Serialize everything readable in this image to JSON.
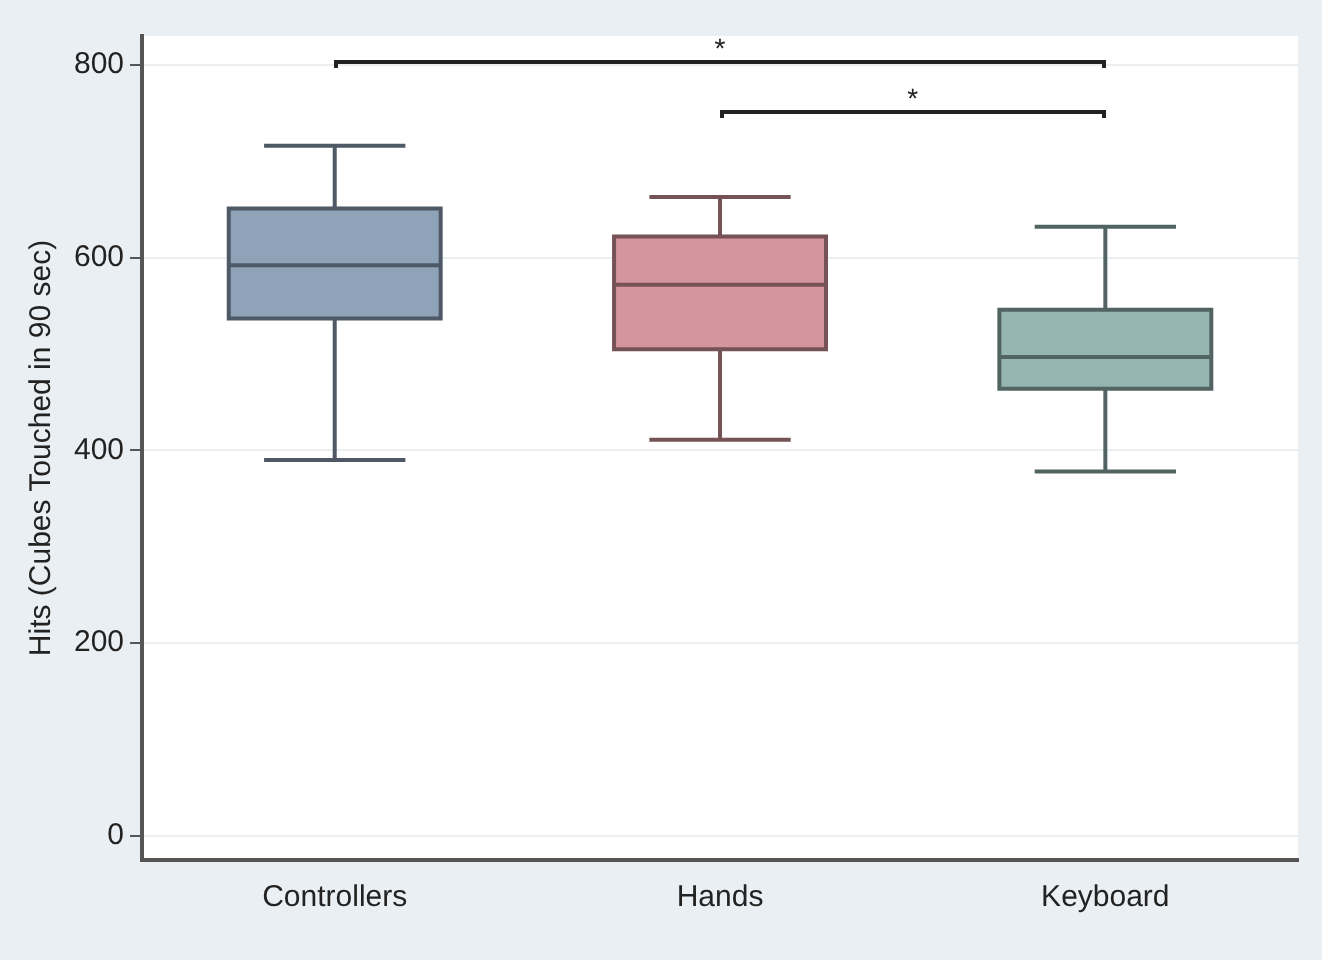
{
  "chart_data": {
    "type": "box",
    "ylabel": "Hits (Cubes Touched in 90 sec)",
    "categories": [
      "Controllers",
      "Hands",
      "Keyboard"
    ],
    "boxes": [
      {
        "low": 390,
        "q1": 537,
        "median": 592,
        "q3": 651,
        "high": 716
      },
      {
        "low": 411,
        "q1": 505,
        "median": 572,
        "q3": 622,
        "high": 663
      },
      {
        "low": 378,
        "q1": 464,
        "median": 497,
        "q3": 546,
        "high": 632
      }
    ],
    "colors": [
      "#8ea2b8",
      "#d4959c",
      "#94b5b0"
    ],
    "ylim": [
      -25,
      830
    ],
    "yticks": [
      0,
      200,
      400,
      600,
      800
    ],
    "grid": "y",
    "legend": false,
    "annotations": [
      "*",
      "*"
    ]
  }
}
